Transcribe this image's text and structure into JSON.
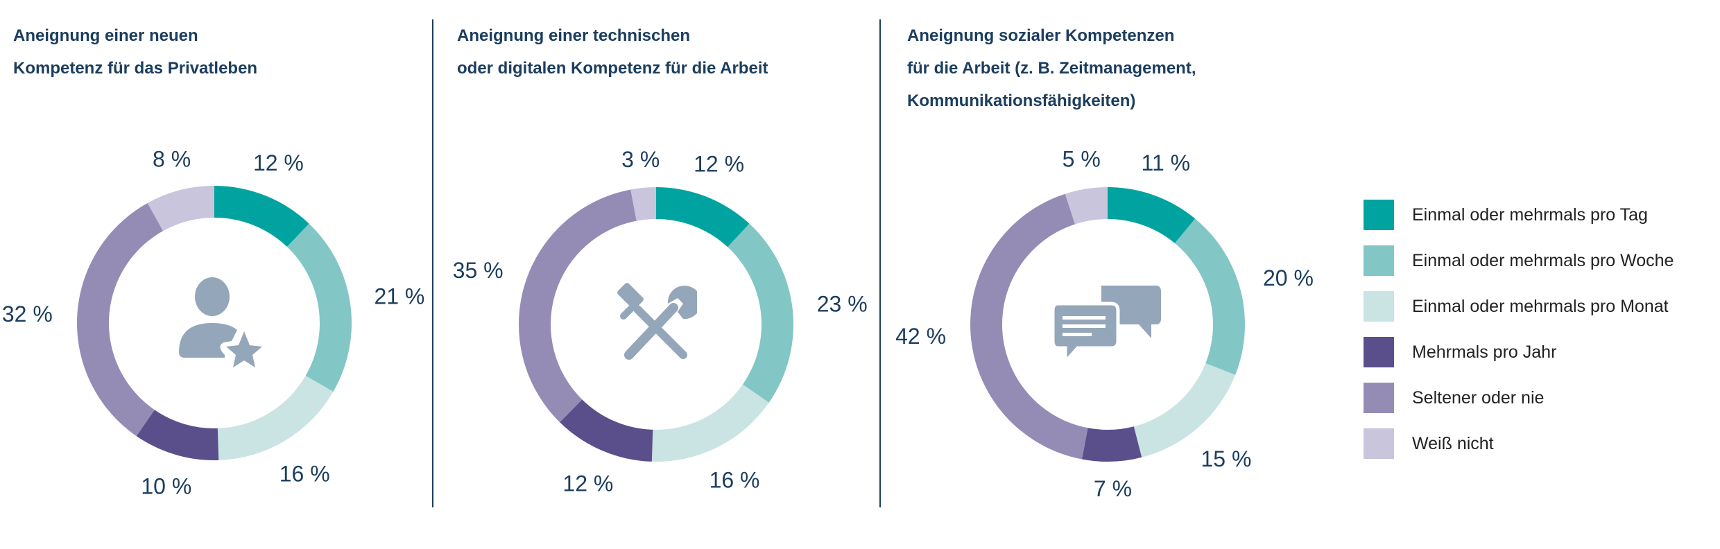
{
  "colors": {
    "Einmal oder mehrmals pro Tag": "#00a39f",
    "Einmal oder mehrmals pro Woche": "#82c6c5",
    "Einmal oder mehrmals pro Monat": "#c9e4e3",
    "Mehrmals pro Jahr": "#5a4f8a",
    "Seltener oder nie": "#958cb6",
    "Weiß nicht": "#c8c5dd",
    "label_text": "#1b3d5e",
    "icon": "#94a6b9"
  },
  "titles": [
    [
      "Aneignung einer neuen",
      "Kompetenz für das Privatleben"
    ],
    [
      "Aneignung einer technischen",
      "oder digitalen Kompetenz für die Arbeit"
    ],
    [
      "Aneignung sozialer Kompetenzen",
      "für die Arbeit (z. B. Zeitmanagement,",
      "Kommunikationsfähigkeiten)"
    ]
  ],
  "legend": [
    "Einmal oder mehrmals pro Tag",
    "Einmal oder mehrmals pro Woche",
    "Einmal oder mehrmals pro Monat",
    "Mehrmals pro Jahr",
    "Seltener oder nie",
    "Weiß nicht"
  ],
  "chart_data": [
    {
      "type": "pie",
      "variant": "donut",
      "title": "Aneignung einer neuen Kompetenz für das Privatleben",
      "center_icon": "person-star-icon",
      "categories": [
        "Einmal oder mehrmals pro Tag",
        "Einmal oder mehrmals pro Woche",
        "Einmal oder mehrmals pro Monat",
        "Mehrmals pro Jahr",
        "Seltener oder nie",
        "Weiß nicht"
      ],
      "values": [
        12,
        21,
        16,
        10,
        32,
        8
      ],
      "labels": [
        "12 %",
        "21 %",
        "16 %",
        "10 %",
        "32 %",
        "8 %"
      ],
      "legend_position": "right"
    },
    {
      "type": "pie",
      "variant": "donut",
      "title": "Aneignung einer technischen oder digitalen Kompetenz für die Arbeit",
      "center_icon": "tools-icon",
      "categories": [
        "Einmal oder mehrmals pro Tag",
        "Einmal oder mehrmals pro Woche",
        "Einmal oder mehrmals pro Monat",
        "Mehrmals pro Jahr",
        "Seltener oder nie",
        "Weiß nicht"
      ],
      "values": [
        12,
        23,
        16,
        12,
        35,
        3
      ],
      "labels": [
        "12 %",
        "23 %",
        "16 %",
        "12 %",
        "35 %",
        "3 %"
      ],
      "legend_position": "right"
    },
    {
      "type": "pie",
      "variant": "donut",
      "title": "Aneignung sozialer Kompetenzen für die Arbeit (z. B. Zeitmanagement, Kommunikationsfähigkeiten)",
      "center_icon": "speech-bubbles-icon",
      "categories": [
        "Einmal oder mehrmals pro Tag",
        "Einmal oder mehrmals pro Woche",
        "Einmal oder mehrmals pro Monat",
        "Mehrmals pro Jahr",
        "Seltener oder nie",
        "Weiß nicht"
      ],
      "values": [
        11,
        20,
        15,
        7,
        42,
        5
      ],
      "labels": [
        "11 %",
        "20 %",
        "15 %",
        "7 %",
        "42 %",
        "5 %"
      ],
      "legend_position": "right"
    }
  ]
}
